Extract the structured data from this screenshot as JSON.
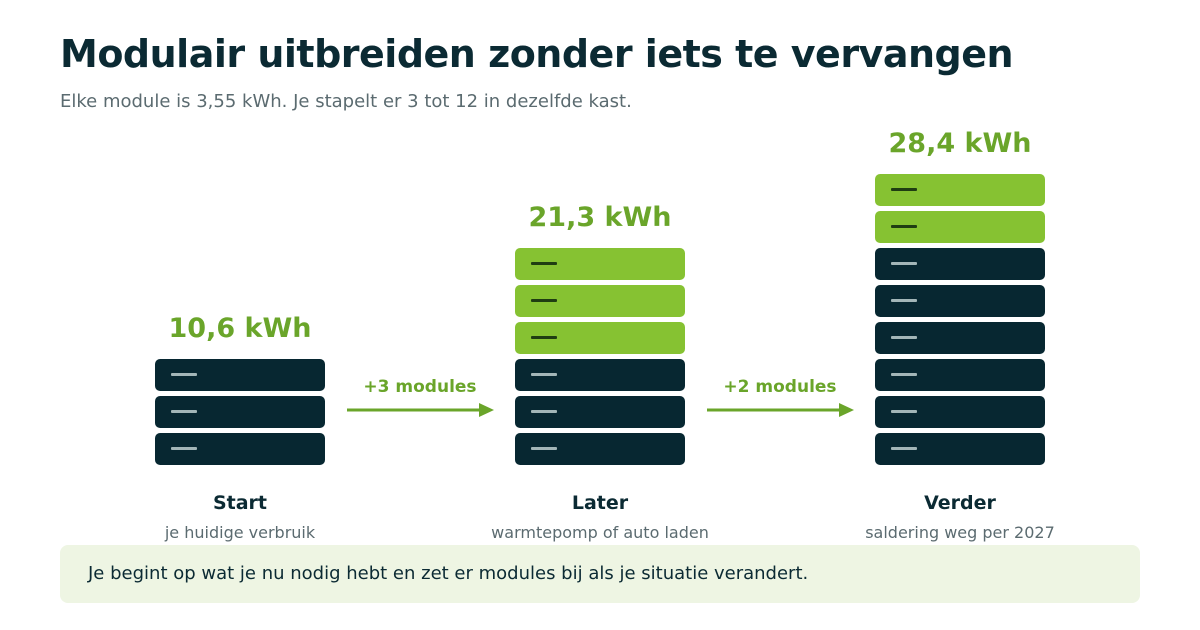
{
  "title": "Modulair uitbreiden zonder iets te vervangen",
  "subtitle": "Elke module is 3,55 kWh. Je stapelt er 3 tot 12 in dezelfde kast.",
  "stages": [
    {
      "capacity": "10,6 kWh",
      "name": "Start",
      "description": "je huidige verbruik",
      "base_modules": 3,
      "added_modules": 0
    },
    {
      "capacity": "21,3 kWh",
      "name": "Later",
      "description": "warmtepomp of auto laden",
      "base_modules": 3,
      "added_modules": 3
    },
    {
      "capacity": "28,4 kWh",
      "name": "Verder",
      "description": "saldering weg per 2027",
      "base_modules": 6,
      "added_modules": 2
    }
  ],
  "arrows": [
    {
      "label": "+3 modules"
    },
    {
      "label": "+2 modules"
    }
  ],
  "note": "Je begint op wat je nu nodig hebt en zet er modules bij als je situatie verandert.",
  "colors": {
    "title": "#0b2a33",
    "accent_green": "#6aa52a",
    "added_module": "#86c232",
    "base_module": "#072731",
    "note_background": "#eef5e3"
  }
}
